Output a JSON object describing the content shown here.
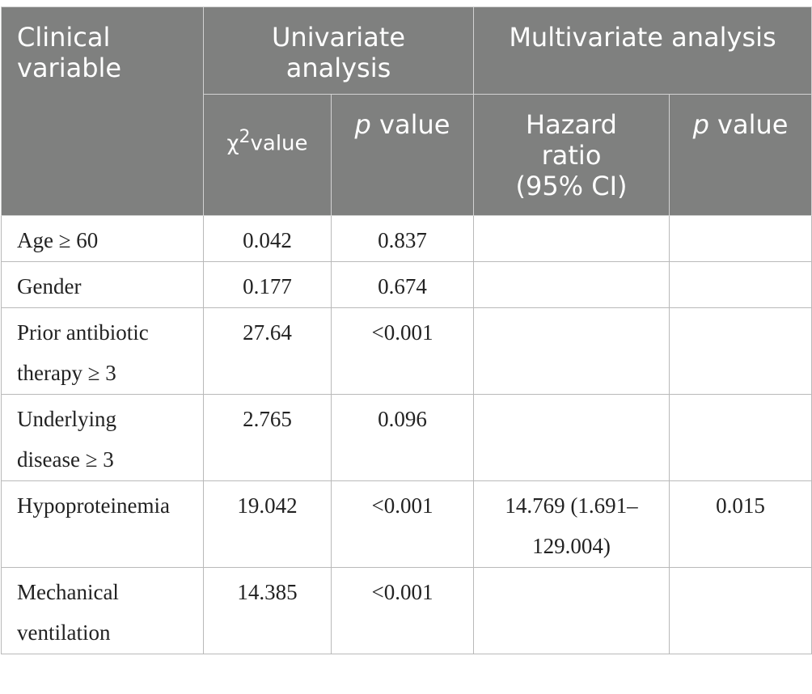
{
  "header": {
    "clinical_variable_line1": "Clinical",
    "clinical_variable_line2": "variable",
    "univariate_line1": "Univariate",
    "univariate_line2": "analysis",
    "multivariate": "Multivariate analysis",
    "chi_symbol": "χ",
    "chi_sup": "2",
    "chi_value": "value",
    "p_letter": "p",
    "p_value_word": " value",
    "hazard_line1": "Hazard",
    "hazard_line2": "ratio",
    "hazard_line3": "(95% CI)",
    "p_letter_2": "p",
    "p_value_word_2": " value"
  },
  "rows": [
    {
      "name_line1": "Age ≥ 60",
      "name_line2": "",
      "chi": "0.042",
      "p": "0.837",
      "hr_line1": "",
      "hr_line2": "",
      "mp": ""
    },
    {
      "name_line1": "Gender",
      "name_line2": "",
      "chi": "0.177",
      "p": "0.674",
      "hr_line1": "",
      "hr_line2": "",
      "mp": ""
    },
    {
      "name_line1": "Prior antibiotic",
      "name_line2": "therapy ≥ 3",
      "chi": "27.64",
      "p": "<0.001",
      "hr_line1": "",
      "hr_line2": "",
      "mp": ""
    },
    {
      "name_line1": "Underlying",
      "name_line2": "disease ≥ 3",
      "chi": "2.765",
      "p": "0.096",
      "hr_line1": "",
      "hr_line2": "",
      "mp": ""
    },
    {
      "name_line1": "Hypoproteinemia",
      "name_line2": "",
      "chi": "19.042",
      "p": "<0.001",
      "hr_line1": "14.769 (1.691–",
      "hr_line2": "129.004)",
      "mp": "0.015"
    },
    {
      "name_line1": "Mechanical",
      "name_line2": "ventilation",
      "chi": "14.385",
      "p": "<0.001",
      "hr_line1": "",
      "hr_line2": "",
      "mp": ""
    }
  ]
}
